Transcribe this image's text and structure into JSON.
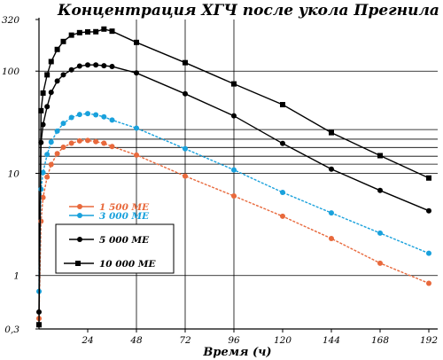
{
  "chart_data": {
    "type": "line",
    "title": "Концентрация ХГЧ после укола Прегнила",
    "xlabel": "Время (ч)",
    "ylabel": "",
    "x_scale": "linear",
    "y_scale": "log",
    "xlim": [
      0,
      192
    ],
    "ylim": [
      0.3,
      320
    ],
    "x_ticks": [
      {
        "value": 24,
        "label": "24"
      },
      {
        "value": 48,
        "label": "48"
      },
      {
        "value": 72,
        "label": "72"
      },
      {
        "value": 96,
        "label": "96"
      },
      {
        "value": 120,
        "label": "120"
      },
      {
        "value": 144,
        "label": "144"
      },
      {
        "value": 168,
        "label": "168"
      },
      {
        "value": 192,
        "label": "192"
      }
    ],
    "y_ticks": [
      {
        "value": 0.3,
        "label": "0,3"
      },
      {
        "value": 1,
        "label": "1"
      },
      {
        "value": 10,
        "label": "10"
      },
      {
        "value": 100,
        "label": "100"
      },
      {
        "value": 320,
        "label": "320"
      }
    ],
    "y_reference_lines": [
      1,
      10,
      12.3,
      14.7,
      17.9,
      21.6,
      26.8,
      100
    ],
    "x_vertical_lines": [
      48,
      72,
      96
    ],
    "legend_placement": "left-middle",
    "series": [
      {
        "name": "1 500 МЕ",
        "color": "#e8693c",
        "marker": "circle",
        "x": [
          0,
          1,
          2,
          4,
          6,
          9,
          12,
          16,
          20,
          24,
          28,
          32,
          36,
          48,
          72,
          96,
          120,
          144,
          168,
          192
        ],
        "y": [
          0.38,
          3.4,
          5.8,
          9.2,
          12.2,
          15.6,
          18.0,
          19.7,
          20.8,
          21.0,
          20.4,
          19.7,
          18.3,
          15.1,
          9.4,
          6.0,
          3.8,
          2.3,
          1.32,
          0.84
        ]
      },
      {
        "name": "3 000 МЕ",
        "color": "#19a1dc",
        "marker": "circle",
        "x": [
          0,
          1,
          2,
          4,
          6,
          9,
          12,
          16,
          20,
          24,
          28,
          32,
          36,
          48,
          72,
          96,
          120,
          144,
          168,
          192
        ],
        "y": [
          0.7,
          7.0,
          10.2,
          15.3,
          20.2,
          25.9,
          30.8,
          35.2,
          37.6,
          38.4,
          37.4,
          35.7,
          33.2,
          27.7,
          17.4,
          10.8,
          6.5,
          4.1,
          2.6,
          1.65
        ]
      },
      {
        "name": "5 000 МЕ",
        "color": "#000000",
        "marker": "circle",
        "x": [
          0,
          1,
          2,
          4,
          6,
          9,
          12,
          16,
          20,
          24,
          28,
          32,
          36,
          48,
          72,
          96,
          120,
          144,
          168,
          192
        ],
        "y": [
          0.44,
          20.0,
          30.0,
          45.0,
          62.0,
          80.0,
          92.0,
          103.0,
          112.0,
          115.0,
          115.0,
          113.0,
          111.0,
          96.0,
          60.0,
          36.5,
          19.6,
          11.0,
          6.8,
          4.3
        ]
      },
      {
        "name": "10 000 МЕ",
        "color": "#000000",
        "marker": "square",
        "x": [
          0,
          1,
          2,
          4,
          6,
          9,
          12,
          16,
          20,
          24,
          28,
          32,
          36,
          48,
          72,
          96,
          120,
          144,
          168,
          192
        ],
        "y": [
          0.33,
          41.0,
          61.0,
          92.0,
          124.0,
          163.0,
          195.0,
          225.0,
          238.0,
          242.0,
          243.0,
          258.0,
          246.0,
          191.0,
          121.0,
          75.0,
          47.0,
          25.0,
          14.9,
          9.0
        ]
      }
    ]
  }
}
